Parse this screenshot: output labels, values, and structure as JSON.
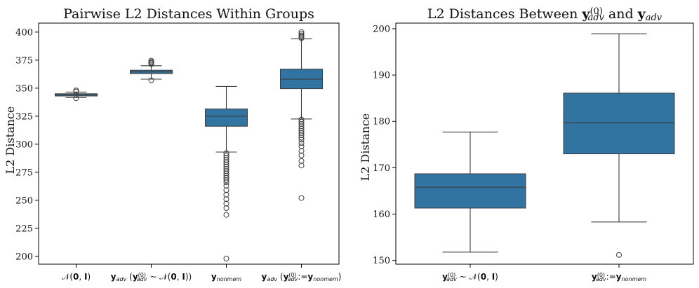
{
  "chart_data": [
    {
      "type": "box",
      "title": "Pairwise L2 Distances Within Groups",
      "ylabel": "L2 Distance",
      "ylim": [
        193,
        408
      ],
      "yticks": [
        200,
        225,
        250,
        275,
        300,
        325,
        350,
        375,
        400
      ],
      "categories": [
        {
          "label": "𝒩(0, I)",
          "parts": [
            {
              "t": "𝒩(",
              "s": ""
            },
            {
              "t": "0",
              "s": "b"
            },
            {
              "t": ", ",
              "s": ""
            },
            {
              "t": "I",
              "s": "b"
            },
            {
              "t": ")",
              "s": ""
            }
          ],
          "whislo": 341.5,
          "q1": 343.0,
          "median": 344.0,
          "q3": 345.0,
          "whishi": 346.5,
          "fliers": [
            341.0,
            347.0,
            348.0
          ]
        },
        {
          "label": "y_adv (y_adv^(0) ~ 𝒩(0, I))",
          "parts": [
            {
              "t": "y",
              "s": "b"
            },
            {
              "t": "adv",
              "s": "sub"
            },
            {
              "t": " (",
              "s": ""
            },
            {
              "t": "y",
              "s": "b"
            },
            {
              "t": "(0)",
              "s": "supsub",
              "sub": "adv"
            },
            {
              "t": " ~ 𝒩(",
              "s": ""
            },
            {
              "t": "0",
              "s": "b"
            },
            {
              "t": ", ",
              "s": ""
            },
            {
              "t": "I",
              "s": "b"
            },
            {
              "t": "))",
              "s": ""
            }
          ],
          "whislo": 358.0,
          "q1": 363.0,
          "median": 364.5,
          "q3": 366.0,
          "whishi": 370.0,
          "fliers": [
            357.0,
            371.5,
            372.5,
            373.5,
            374.5
          ]
        },
        {
          "label": "y_nonmem",
          "parts": [
            {
              "t": "y",
              "s": "b"
            },
            {
              "t": "nonmem",
              "s": "sub"
            }
          ],
          "whislo": 293.0,
          "q1": 316.0,
          "median": 325.0,
          "q3": 331.5,
          "whishi": 351.5,
          "fliers": [
            292,
            290,
            288,
            286,
            284,
            282,
            280,
            278,
            276,
            274,
            272,
            270,
            268,
            266,
            263,
            259,
            255,
            251,
            247,
            243,
            237,
            198
          ]
        },
        {
          "label": "y_adv (y_adv^(0):=y_nonmem)",
          "parts": [
            {
              "t": "y",
              "s": "b"
            },
            {
              "t": "adv",
              "s": "sub"
            },
            {
              "t": " (",
              "s": ""
            },
            {
              "t": "y",
              "s": "b"
            },
            {
              "t": "(0)",
              "s": "supsub",
              "sub": "adv"
            },
            {
              "t": ":=",
              "s": ""
            },
            {
              "t": "y",
              "s": "b"
            },
            {
              "t": "nonmem",
              "s": "sub"
            },
            {
              "t": ")",
              "s": ""
            }
          ],
          "whislo": 322.5,
          "q1": 349.5,
          "median": 358.0,
          "q3": 367.0,
          "whishi": 394.0,
          "fliers": [
            322,
            320,
            318,
            316,
            314,
            312,
            310,
            308,
            306,
            304,
            301,
            298,
            294,
            290,
            285,
            281,
            252,
            394.5,
            395.5,
            397,
            398.5,
            400
          ]
        }
      ]
    },
    {
      "type": "box",
      "title": "L2 Distances Between y_adv^(0) and y_adv",
      "title_parts": [
        {
          "t": "L2 Distances Between ",
          "s": ""
        },
        {
          "t": "y",
          "s": "b"
        },
        {
          "t": "(0)",
          "s": "supsub",
          "sub": "adv"
        },
        {
          "t": " and ",
          "s": ""
        },
        {
          "t": "y",
          "s": "b"
        },
        {
          "t": "adv",
          "s": "sub"
        }
      ],
      "ylabel": "L2 Distance",
      "ylim": [
        149.2,
        201.2
      ],
      "yticks": [
        150,
        160,
        170,
        180,
        190,
        200
      ],
      "categories": [
        {
          "label": "y_adv^(0) ~ 𝒩(0, I)",
          "parts": [
            {
              "t": "y",
              "s": "b"
            },
            {
              "t": "(0)",
              "s": "supsub",
              "sub": "adv"
            },
            {
              "t": " ~ 𝒩(",
              "s": ""
            },
            {
              "t": "0",
              "s": "b"
            },
            {
              "t": ", ",
              "s": ""
            },
            {
              "t": "I",
              "s": "b"
            },
            {
              "t": ")",
              "s": ""
            }
          ],
          "whislo": 151.8,
          "q1": 161.3,
          "median": 165.8,
          "q3": 168.7,
          "whishi": 177.7,
          "fliers": []
        },
        {
          "label": "y_adv^(0) := y_nonmem",
          "parts": [
            {
              "t": "y",
              "s": "b"
            },
            {
              "t": "(0)",
              "s": "supsub",
              "sub": "adv"
            },
            {
              "t": ":=",
              "s": ""
            },
            {
              "t": "y",
              "s": "b"
            },
            {
              "t": "nonmem",
              "s": "sub"
            }
          ],
          "whislo": 158.3,
          "q1": 173.0,
          "median": 179.7,
          "q3": 186.1,
          "whishi": 198.9,
          "fliers": [
            151.2
          ]
        }
      ]
    }
  ]
}
